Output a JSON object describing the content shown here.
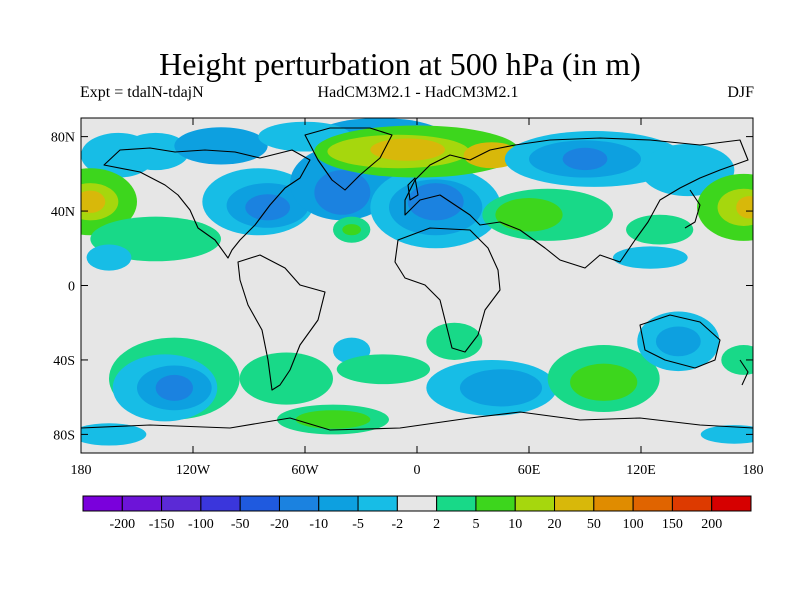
{
  "title": "Height perturbation at 500 hPa (in m)",
  "subtitle_left": "Expt = tdalN-tdajN",
  "subtitle_center": "HadCM3M2.1 - HadCM3M2.1",
  "subtitle_right": "DJF",
  "map": {
    "projection": "cylindrical-equidistant",
    "lon_range": [
      -180,
      180
    ],
    "lat_range": [
      -90,
      90
    ],
    "background_color": "#e6e6e6",
    "y_ticks": [
      {
        "lat": 80,
        "label": "80N"
      },
      {
        "lat": 40,
        "label": "40N"
      },
      {
        "lat": 0,
        "label": "0"
      },
      {
        "lat": -40,
        "label": "40S"
      },
      {
        "lat": -80,
        "label": "80S"
      }
    ],
    "x_ticks": [
      {
        "lon": -180,
        "label": "180"
      },
      {
        "lon": -120,
        "label": "120W"
      },
      {
        "lon": -60,
        "label": "60W"
      },
      {
        "lon": 0,
        "label": "0"
      },
      {
        "lon": 60,
        "label": "60E"
      },
      {
        "lon": 120,
        "label": "120E"
      },
      {
        "lon": 180,
        "label": "180"
      }
    ]
  },
  "colorbar": {
    "colors": [
      "#7a00dc",
      "#6d14d8",
      "#5b2ad6",
      "#3a36dc",
      "#1f5adf",
      "#1b82e0",
      "#0da0e0",
      "#17bde6",
      "#e6e6e6",
      "#18d988",
      "#3dd61d",
      "#a6d70d",
      "#d8b80a",
      "#e08c00",
      "#e06400",
      "#dd3a00",
      "#d60000"
    ],
    "labels": [
      "-200",
      "-150",
      "-100",
      "-50",
      "-20",
      "-10",
      "-5",
      "-2",
      "2",
      "5",
      "10",
      "20",
      "50",
      "100",
      "150",
      "200"
    ]
  },
  "contour_regions": [
    {
      "lon": -160,
      "lat": 70,
      "rx": 20,
      "ry": 12,
      "level": 7
    },
    {
      "lon": -140,
      "lat": 72,
      "rx": 18,
      "ry": 10,
      "level": 7
    },
    {
      "lon": -105,
      "lat": 75,
      "rx": 25,
      "ry": 10,
      "level": 6
    },
    {
      "lon": -175,
      "lat": 45,
      "rx": 25,
      "ry": 18,
      "level": 10
    },
    {
      "lon": -175,
      "lat": 45,
      "rx": 15,
      "ry": 10,
      "level": 11
    },
    {
      "lon": -175,
      "lat": 45,
      "rx": 8,
      "ry": 6,
      "level": 12
    },
    {
      "lon": -140,
      "lat": 25,
      "rx": 35,
      "ry": 12,
      "level": 9
    },
    {
      "lon": -165,
      "lat": 15,
      "rx": 12,
      "ry": 7,
      "level": 7
    },
    {
      "lon": -85,
      "lat": 45,
      "rx": 30,
      "ry": 18,
      "level": 7
    },
    {
      "lon": -80,
      "lat": 43,
      "rx": 22,
      "ry": 12,
      "level": 6
    },
    {
      "lon": -80,
      "lat": 42,
      "rx": 12,
      "ry": 7,
      "level": 5
    },
    {
      "lon": -40,
      "lat": 55,
      "rx": 28,
      "ry": 20,
      "level": 6
    },
    {
      "lon": -40,
      "lat": 50,
      "rx": 15,
      "ry": 12,
      "level": 5
    },
    {
      "lon": -20,
      "lat": 80,
      "rx": 35,
      "ry": 10,
      "level": 6
    },
    {
      "lon": -60,
      "lat": 80,
      "rx": 25,
      "ry": 8,
      "level": 7
    },
    {
      "lon": 10,
      "lat": 42,
      "rx": 35,
      "ry": 22,
      "level": 7
    },
    {
      "lon": 10,
      "lat": 42,
      "rx": 25,
      "ry": 15,
      "level": 6
    },
    {
      "lon": 10,
      "lat": 45,
      "rx": 15,
      "ry": 10,
      "level": 5
    },
    {
      "lon": 0,
      "lat": 72,
      "rx": 55,
      "ry": 14,
      "level": 10
    },
    {
      "lon": -10,
      "lat": 72,
      "rx": 38,
      "ry": 9,
      "level": 11
    },
    {
      "lon": -5,
      "lat": 73,
      "rx": 20,
      "ry": 6,
      "level": 12
    },
    {
      "lon": 40,
      "lat": 70,
      "rx": 15,
      "ry": 7,
      "level": 12
    },
    {
      "lon": 95,
      "lat": 68,
      "rx": 48,
      "ry": 15,
      "level": 7
    },
    {
      "lon": 90,
      "lat": 68,
      "rx": 30,
      "ry": 10,
      "level": 6
    },
    {
      "lon": 90,
      "lat": 68,
      "rx": 12,
      "ry": 6,
      "level": 5
    },
    {
      "lon": 145,
      "lat": 62,
      "rx": 25,
      "ry": 14,
      "level": 7
    },
    {
      "lon": 70,
      "lat": 38,
      "rx": 35,
      "ry": 14,
      "level": 9
    },
    {
      "lon": 60,
      "lat": 38,
      "rx": 18,
      "ry": 9,
      "level": 10
    },
    {
      "lon": 130,
      "lat": 30,
      "rx": 18,
      "ry": 8,
      "level": 9
    },
    {
      "lon": 125,
      "lat": 15,
      "rx": 20,
      "ry": 6,
      "level": 7
    },
    {
      "lon": 175,
      "lat": 42,
      "rx": 25,
      "ry": 18,
      "level": 10
    },
    {
      "lon": 175,
      "lat": 42,
      "rx": 14,
      "ry": 10,
      "level": 11
    },
    {
      "lon": 178,
      "lat": 42,
      "rx": 7,
      "ry": 6,
      "level": 12
    },
    {
      "lon": -35,
      "lat": 30,
      "rx": 10,
      "ry": 7,
      "level": 9
    },
    {
      "lon": -35,
      "lat": 30,
      "rx": 5,
      "ry": 3,
      "level": 10
    },
    {
      "lon": -35,
      "lat": -35,
      "rx": 10,
      "ry": 7,
      "level": 7
    },
    {
      "lon": -18,
      "lat": -45,
      "rx": 25,
      "ry": 8,
      "level": 9
    },
    {
      "lon": -70,
      "lat": -50,
      "rx": 25,
      "ry": 14,
      "level": 9
    },
    {
      "lon": -130,
      "lat": -50,
      "rx": 35,
      "ry": 22,
      "level": 9
    },
    {
      "lon": -135,
      "lat": -55,
      "rx": 28,
      "ry": 18,
      "level": 7
    },
    {
      "lon": -130,
      "lat": -55,
      "rx": 20,
      "ry": 12,
      "level": 6
    },
    {
      "lon": -130,
      "lat": -55,
      "rx": 10,
      "ry": 7,
      "level": 5
    },
    {
      "lon": -45,
      "lat": -72,
      "rx": 30,
      "ry": 8,
      "level": 9
    },
    {
      "lon": -45,
      "lat": -72,
      "rx": 20,
      "ry": 5,
      "level": 10
    },
    {
      "lon": -165,
      "lat": -80,
      "rx": 20,
      "ry": 6,
      "level": 7
    },
    {
      "lon": 20,
      "lat": -30,
      "rx": 15,
      "ry": 10,
      "level": 9
    },
    {
      "lon": 40,
      "lat": -55,
      "rx": 35,
      "ry": 15,
      "level": 7
    },
    {
      "lon": 45,
      "lat": -55,
      "rx": 22,
      "ry": 10,
      "level": 6
    },
    {
      "lon": 100,
      "lat": -50,
      "rx": 30,
      "ry": 18,
      "level": 9
    },
    {
      "lon": 100,
      "lat": -52,
      "rx": 18,
      "ry": 10,
      "level": 10
    },
    {
      "lon": 140,
      "lat": -30,
      "rx": 22,
      "ry": 16,
      "level": 7
    },
    {
      "lon": 140,
      "lat": -30,
      "rx": 12,
      "ry": 8,
      "level": 6
    },
    {
      "lon": 175,
      "lat": -40,
      "rx": 12,
      "ry": 8,
      "level": 9
    },
    {
      "lon": 170,
      "lat": -80,
      "rx": 18,
      "ry": 5,
      "level": 7
    }
  ]
}
